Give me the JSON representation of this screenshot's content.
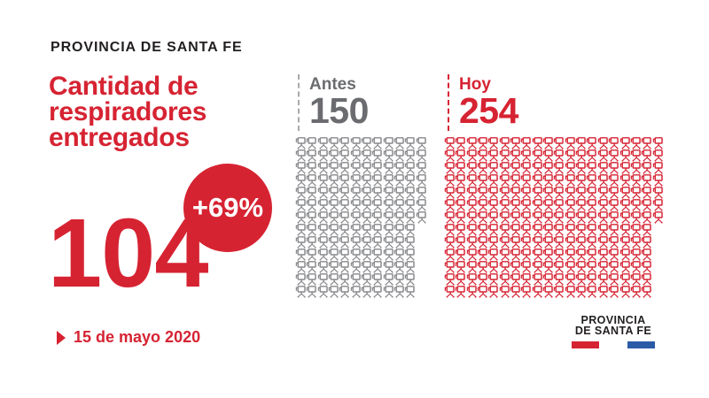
{
  "colors": {
    "red": "#D62332",
    "gray_text": "#6B6C6F",
    "icon_gray": "#87888B",
    "dark": "#231F20",
    "blue": "#2B5BA7",
    "dash_gray": "#A9AAAD"
  },
  "header": {
    "kicker": "PROVINCIA DE SANTA FE",
    "title_lines": [
      "Cantidad de",
      "respiradores",
      "entregados"
    ]
  },
  "stat": {
    "value": "104",
    "badge": "+69%",
    "date": "15 de mayo 2020",
    "date_icon": "triangle-right-icon"
  },
  "chart_data": {
    "type": "pictogram",
    "title": "Cantidad de respiradores entregados",
    "categories": [
      "Antes",
      "Hoy"
    ],
    "values": [
      150,
      254
    ],
    "highlight_value": 104,
    "percent_change": "+69%",
    "date_label": "15 de mayo 2020",
    "icon": "ventilator-icon",
    "legend_position": "top",
    "series": [
      {
        "name": "Antes",
        "value": "150",
        "color": "#87888B",
        "rows": [
          12,
          12,
          12,
          12,
          12,
          12,
          12,
          11,
          11,
          11,
          11,
          11,
          11
        ]
      },
      {
        "name": "Hoy",
        "value": "254",
        "color": "#D62332",
        "rows": [
          20,
          20,
          20,
          20,
          20,
          20,
          20,
          19,
          19,
          19,
          19,
          19,
          19
        ]
      }
    ]
  },
  "footer_logo": {
    "line1": "PROVINCIA",
    "line2": "DE SANTA FE",
    "flag": [
      "#D62332",
      "#2B5BA7"
    ]
  }
}
